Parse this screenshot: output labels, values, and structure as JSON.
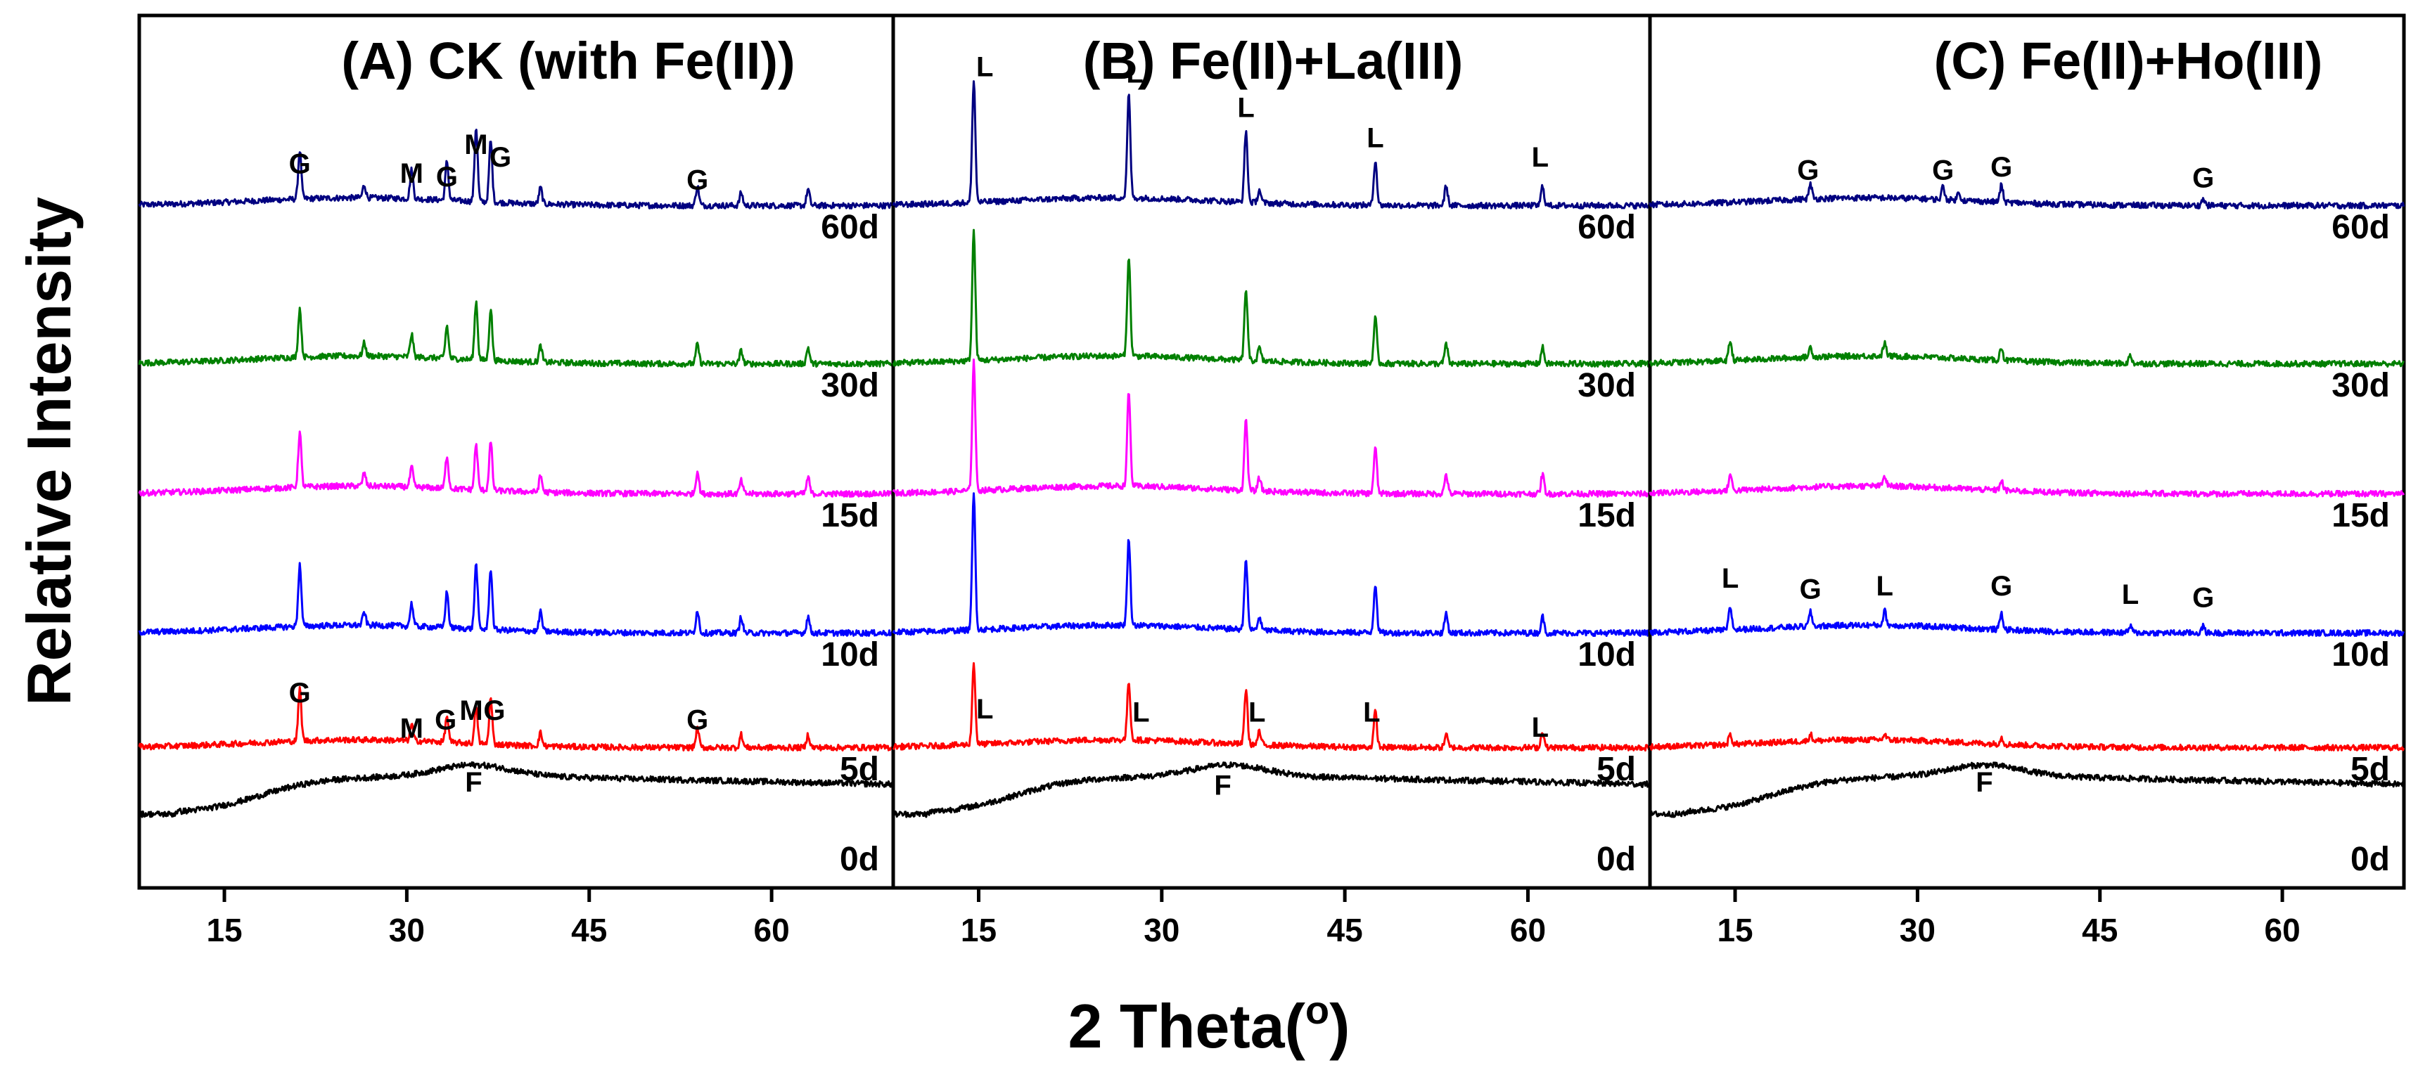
{
  "chart_data": {
    "type": "line",
    "chart_kind": "XRD patterns (stacked, offset)",
    "xlabel": "2 Theta(",
    "xlabel_suffix": ")",
    "xlabel_superscript": "o",
    "ylabel": "Relative Intensity",
    "x_range": [
      8,
      70
    ],
    "x_ticks": [
      15,
      30,
      45,
      60
    ],
    "y_ticks": [],
    "grid": false,
    "curve_labels": [
      "60d",
      "30d",
      "15d",
      "10d",
      "5d",
      "0d"
    ],
    "colors": {
      "60d": "#000080",
      "30d": "#008000",
      "15d": "#ff00ff",
      "10d": "#0000ff",
      "5d": "#ff0000",
      "0d": "#000000"
    },
    "panels": [
      {
        "title": "(A) CK (with Fe(II))",
        "series": [
          {
            "name": "60d",
            "offset": 5,
            "peaks": [
              {
                "x": 21.2,
                "h": 0.75
              },
              {
                "x": 26.5,
                "h": 0.2
              },
              {
                "x": 30.4,
                "h": 0.45
              },
              {
                "x": 33.3,
                "h": 0.6
              },
              {
                "x": 35.7,
                "h": 1.15
              },
              {
                "x": 36.9,
                "h": 0.95
              },
              {
                "x": 41.0,
                "h": 0.25
              },
              {
                "x": 53.9,
                "h": 0.3
              },
              {
                "x": 57.5,
                "h": 0.2
              },
              {
                "x": 63.0,
                "h": 0.25
              }
            ]
          },
          {
            "name": "30d",
            "offset": 4,
            "peaks": [
              {
                "x": 21.2,
                "h": 0.75
              },
              {
                "x": 26.5,
                "h": 0.2
              },
              {
                "x": 30.4,
                "h": 0.35
              },
              {
                "x": 33.3,
                "h": 0.5
              },
              {
                "x": 35.7,
                "h": 0.9
              },
              {
                "x": 36.9,
                "h": 0.8
              },
              {
                "x": 41.0,
                "h": 0.25
              },
              {
                "x": 53.9,
                "h": 0.3
              },
              {
                "x": 57.5,
                "h": 0.2
              },
              {
                "x": 63.0,
                "h": 0.25
              }
            ]
          },
          {
            "name": "15d",
            "offset": 3,
            "peaks": [
              {
                "x": 21.2,
                "h": 0.85
              },
              {
                "x": 26.5,
                "h": 0.2
              },
              {
                "x": 30.4,
                "h": 0.3
              },
              {
                "x": 33.3,
                "h": 0.5
              },
              {
                "x": 35.7,
                "h": 0.7
              },
              {
                "x": 36.9,
                "h": 0.75
              },
              {
                "x": 41.0,
                "h": 0.25
              },
              {
                "x": 53.9,
                "h": 0.35
              },
              {
                "x": 57.5,
                "h": 0.2
              },
              {
                "x": 63.0,
                "h": 0.25
              }
            ]
          },
          {
            "name": "10d",
            "offset": 2,
            "peaks": [
              {
                "x": 21.2,
                "h": 0.95
              },
              {
                "x": 26.5,
                "h": 0.2
              },
              {
                "x": 30.4,
                "h": 0.35
              },
              {
                "x": 33.3,
                "h": 0.55
              },
              {
                "x": 35.7,
                "h": 1.0
              },
              {
                "x": 36.9,
                "h": 0.95
              },
              {
                "x": 41.0,
                "h": 0.3
              },
              {
                "x": 53.9,
                "h": 0.35
              },
              {
                "x": 57.5,
                "h": 0.25
              },
              {
                "x": 63.0,
                "h": 0.25
              }
            ]
          },
          {
            "name": "5d",
            "offset": 1,
            "peaks": [
              {
                "x": 21.2,
                "h": 0.8
              },
              {
                "x": 30.4,
                "h": 0.25
              },
              {
                "x": 33.3,
                "h": 0.4
              },
              {
                "x": 35.7,
                "h": 0.55
              },
              {
                "x": 36.9,
                "h": 0.7
              },
              {
                "x": 41.0,
                "h": 0.2
              },
              {
                "x": 53.9,
                "h": 0.3
              },
              {
                "x": 57.5,
                "h": 0.2
              },
              {
                "x": 63.0,
                "h": 0.2
              }
            ]
          },
          {
            "name": "0d",
            "offset": 0,
            "amorphous": true,
            "peaks": []
          }
        ],
        "annotations": [
          {
            "text": "G",
            "x": 21.2,
            "curve": "60d",
            "dy": 0.55
          },
          {
            "text": "M",
            "x": 30.4,
            "curve": "60d",
            "dy": 0.4
          },
          {
            "text": "G",
            "x": 33.3,
            "curve": "60d",
            "dy": 0.35
          },
          {
            "text": "M",
            "x": 35.7,
            "curve": "60d",
            "dy": 0.85
          },
          {
            "text": "G",
            "x": 37.7,
            "curve": "60d",
            "dy": 0.65
          },
          {
            "text": "G",
            "x": 53.9,
            "curve": "60d",
            "dy": 0.3
          },
          {
            "text": "G",
            "x": 21.2,
            "curve": "5d",
            "dy": 0.75
          },
          {
            "text": "M",
            "x": 30.4,
            "curve": "5d",
            "dy": 0.2
          },
          {
            "text": "G",
            "x": 33.2,
            "curve": "5d",
            "dy": 0.33
          },
          {
            "text": "M",
            "x": 35.3,
            "curve": "5d",
            "dy": 0.48
          },
          {
            "text": "G",
            "x": 37.2,
            "curve": "5d",
            "dy": 0.48
          },
          {
            "text": "G",
            "x": 53.9,
            "curve": "5d",
            "dy": 0.33
          },
          {
            "text": "F",
            "x": 35.5,
            "curve": "0d",
            "dy": 0.35
          }
        ]
      },
      {
        "title": "(B) Fe(II)+La(III)",
        "series": [
          {
            "name": "60d",
            "offset": 5,
            "peaks": [
              {
                "x": 14.6,
                "h": 1.9
              },
              {
                "x": 27.3,
                "h": 1.6
              },
              {
                "x": 36.9,
                "h": 1.1
              },
              {
                "x": 38.0,
                "h": 0.2
              },
              {
                "x": 47.5,
                "h": 0.7
              },
              {
                "x": 53.3,
                "h": 0.3
              },
              {
                "x": 61.2,
                "h": 0.3
              }
            ]
          },
          {
            "name": "30d",
            "offset": 4,
            "peaks": [
              {
                "x": 14.6,
                "h": 2.0
              },
              {
                "x": 27.3,
                "h": 1.55
              },
              {
                "x": 36.9,
                "h": 1.1
              },
              {
                "x": 38.0,
                "h": 0.2
              },
              {
                "x": 47.5,
                "h": 0.7
              },
              {
                "x": 53.3,
                "h": 0.3
              },
              {
                "x": 61.2,
                "h": 0.25
              }
            ]
          },
          {
            "name": "15d",
            "offset": 3,
            "peaks": [
              {
                "x": 14.6,
                "h": 2.0
              },
              {
                "x": 27.3,
                "h": 1.45
              },
              {
                "x": 36.9,
                "h": 1.1
              },
              {
                "x": 38.0,
                "h": 0.2
              },
              {
                "x": 47.5,
                "h": 0.7
              },
              {
                "x": 53.3,
                "h": 0.3
              },
              {
                "x": 61.2,
                "h": 0.3
              }
            ]
          },
          {
            "name": "10d",
            "offset": 2,
            "peaks": [
              {
                "x": 14.6,
                "h": 2.1
              },
              {
                "x": 27.3,
                "h": 1.35
              },
              {
                "x": 36.9,
                "h": 1.1
              },
              {
                "x": 38.0,
                "h": 0.2
              },
              {
                "x": 47.5,
                "h": 0.75
              },
              {
                "x": 53.3,
                "h": 0.3
              },
              {
                "x": 61.2,
                "h": 0.25
              }
            ]
          },
          {
            "name": "5d",
            "offset": 1,
            "peaks": [
              {
                "x": 14.6,
                "h": 1.25
              },
              {
                "x": 27.3,
                "h": 0.9
              },
              {
                "x": 36.9,
                "h": 0.85
              },
              {
                "x": 38.0,
                "h": 0.2
              },
              {
                "x": 47.5,
                "h": 0.55
              },
              {
                "x": 53.3,
                "h": 0.2
              },
              {
                "x": 61.2,
                "h": 0.25
              }
            ]
          },
          {
            "name": "0d",
            "offset": 0,
            "amorphous": true,
            "peaks": []
          }
        ],
        "annotations": [
          {
            "text": "L",
            "x": 15.5,
            "curve": "60d",
            "dy": 2.05
          },
          {
            "text": "L",
            "x": 27.8,
            "curve": "60d",
            "dy": 1.95
          },
          {
            "text": "L",
            "x": 36.9,
            "curve": "60d",
            "dy": 1.42
          },
          {
            "text": "L",
            "x": 47.5,
            "curve": "60d",
            "dy": 0.95
          },
          {
            "text": "L",
            "x": 61.0,
            "curve": "60d",
            "dy": 0.65
          },
          {
            "text": "L",
            "x": 15.5,
            "curve": "5d",
            "dy": 0.5
          },
          {
            "text": "L",
            "x": 28.3,
            "curve": "5d",
            "dy": 0.45
          },
          {
            "text": "L",
            "x": 37.8,
            "curve": "5d",
            "dy": 0.45
          },
          {
            "text": "L",
            "x": 47.2,
            "curve": "5d",
            "dy": 0.45
          },
          {
            "text": "L",
            "x": 61.0,
            "curve": "5d",
            "dy": 0.22
          },
          {
            "text": "F",
            "x": 35.0,
            "curve": "0d",
            "dy": 0.3
          }
        ]
      },
      {
        "title": "(C) Fe(II)+Ho(III)",
        "series": [
          {
            "name": "60d",
            "offset": 5,
            "peaks": [
              {
                "x": 21.2,
                "h": 0.22
              },
              {
                "x": 32.1,
                "h": 0.2
              },
              {
                "x": 33.4,
                "h": 0.12
              },
              {
                "x": 36.9,
                "h": 0.26
              },
              {
                "x": 53.5,
                "h": 0.1
              }
            ]
          },
          {
            "name": "30d",
            "offset": 4,
            "peaks": [
              {
                "x": 14.6,
                "h": 0.3
              },
              {
                "x": 21.2,
                "h": 0.15
              },
              {
                "x": 27.3,
                "h": 0.2
              },
              {
                "x": 36.9,
                "h": 0.2
              },
              {
                "x": 47.5,
                "h": 0.12
              }
            ]
          },
          {
            "name": "15d",
            "offset": 3,
            "peaks": [
              {
                "x": 14.6,
                "h": 0.25
              },
              {
                "x": 27.3,
                "h": 0.15
              },
              {
                "x": 36.9,
                "h": 0.15
              }
            ]
          },
          {
            "name": "10d",
            "offset": 2,
            "peaks": [
              {
                "x": 14.6,
                "h": 0.35
              },
              {
                "x": 21.2,
                "h": 0.22
              },
              {
                "x": 27.3,
                "h": 0.22
              },
              {
                "x": 36.9,
                "h": 0.25
              },
              {
                "x": 47.5,
                "h": 0.1
              },
              {
                "x": 53.5,
                "h": 0.1
              }
            ]
          },
          {
            "name": "5d",
            "offset": 1,
            "peaks": [
              {
                "x": 14.6,
                "h": 0.15
              },
              {
                "x": 21.2,
                "h": 0.1
              },
              {
                "x": 27.3,
                "h": 0.08
              },
              {
                "x": 36.9,
                "h": 0.1
              }
            ]
          },
          {
            "name": "0d",
            "offset": 0,
            "amorphous": true,
            "peaks": []
          }
        ],
        "annotations": [
          {
            "text": "G",
            "x": 21.0,
            "curve": "60d",
            "dy": 0.45
          },
          {
            "text": "G",
            "x": 32.1,
            "curve": "60d",
            "dy": 0.45
          },
          {
            "text": "G",
            "x": 36.9,
            "curve": "60d",
            "dy": 0.5
          },
          {
            "text": "G",
            "x": 53.5,
            "curve": "60d",
            "dy": 0.33
          },
          {
            "text": "L",
            "x": 14.6,
            "curve": "10d",
            "dy": 0.75
          },
          {
            "text": "G",
            "x": 21.2,
            "curve": "10d",
            "dy": 0.58
          },
          {
            "text": "L",
            "x": 27.3,
            "curve": "10d",
            "dy": 0.63
          },
          {
            "text": "G",
            "x": 36.9,
            "curve": "10d",
            "dy": 0.63
          },
          {
            "text": "L",
            "x": 47.5,
            "curve": "10d",
            "dy": 0.5
          },
          {
            "text": "G",
            "x": 53.5,
            "curve": "10d",
            "dy": 0.45
          },
          {
            "text": "F",
            "x": 35.5,
            "curve": "0d",
            "dy": 0.35
          }
        ]
      }
    ]
  }
}
